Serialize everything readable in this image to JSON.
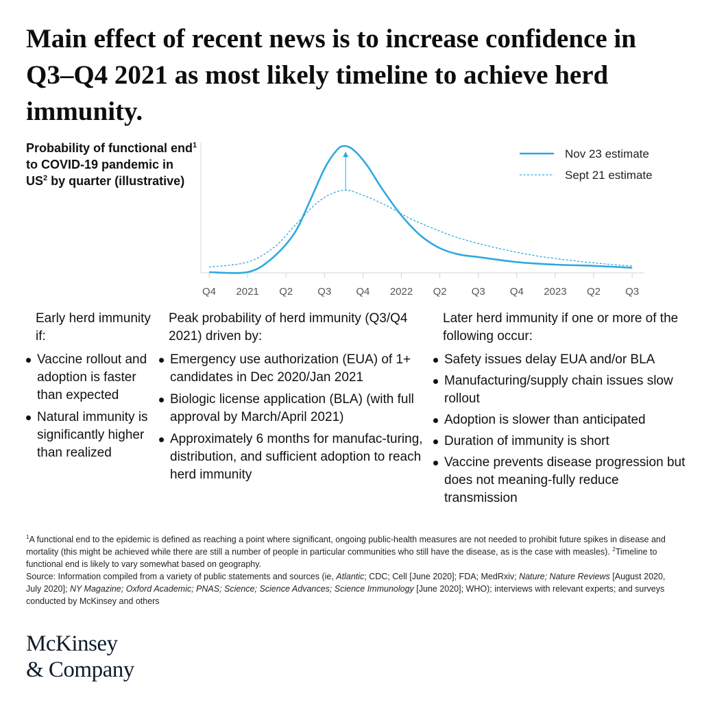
{
  "title": "Main effect of recent news is to increase confidence in Q3–Q4 2021 as most likely timeline to achieve herd immunity.",
  "chart_label": {
    "part1": "Probability of functional end",
    "sup1": "1",
    "part2": " to COVID-19 pandemic in US",
    "sup2": "2",
    "part3": " by quarter (illustrative)"
  },
  "chart_data": {
    "type": "line",
    "x_ticks": [
      "Q4",
      "2021",
      "Q2",
      "Q3",
      "Q4",
      "2022",
      "Q2",
      "Q3",
      "Q4",
      "2023",
      "Q2",
      "Q3"
    ],
    "series": [
      {
        "name": "Nov 23 estimate",
        "style": "solid",
        "color": "#2ea8e0",
        "points": [
          [
            0,
            0
          ],
          [
            1,
            0
          ],
          [
            1.6,
            0.1
          ],
          [
            2.2,
            0.3
          ],
          [
            2.6,
            0.55
          ],
          [
            3,
            0.82
          ],
          [
            3.3,
            0.96
          ],
          [
            3.5,
            1.0
          ],
          [
            3.75,
            0.97
          ],
          [
            4.1,
            0.85
          ],
          [
            4.5,
            0.66
          ],
          [
            5,
            0.45
          ],
          [
            5.5,
            0.29
          ],
          [
            6,
            0.19
          ],
          [
            6.5,
            0.14
          ],
          [
            7,
            0.12
          ],
          [
            8,
            0.08
          ],
          [
            9,
            0.06
          ],
          [
            10,
            0.05
          ],
          [
            11,
            0.035
          ]
        ]
      },
      {
        "name": "Sept 21 estimate",
        "style": "dashed",
        "color": "#2ea8e0",
        "points": [
          [
            0,
            0.04
          ],
          [
            1,
            0.08
          ],
          [
            1.7,
            0.2
          ],
          [
            2.2,
            0.36
          ],
          [
            2.7,
            0.52
          ],
          [
            3.1,
            0.61
          ],
          [
            3.55,
            0.65
          ],
          [
            4,
            0.61
          ],
          [
            4.6,
            0.53
          ],
          [
            5.2,
            0.43
          ],
          [
            5.8,
            0.35
          ],
          [
            6.5,
            0.27
          ],
          [
            7.5,
            0.19
          ],
          [
            8.5,
            0.13
          ],
          [
            9.5,
            0.09
          ],
          [
            10.5,
            0.06
          ],
          [
            11,
            0.05
          ]
        ]
      }
    ],
    "annotation": {
      "type": "arrow",
      "from_series": "Sept 21 estimate",
      "to_series": "Nov 23 estimate",
      "x": 3.55
    },
    "grid": false,
    "legend": "top-right",
    "xlabel": "",
    "ylabel": ""
  },
  "columns": {
    "early": {
      "heading": "Early herd immunity if:",
      "items": [
        "Vaccine rollout and adoption is faster than expected",
        "Natural immunity is significantly higher than realized"
      ]
    },
    "peak": {
      "heading": "Peak probability of herd immunity (Q3/Q4 2021) driven by:",
      "items": [
        "Emergency use authorization (EUA) of 1+ candidates in Dec 2020/Jan 2021",
        "Biologic license application (BLA) (with full approval by March/April 2021)",
        "Approximately 6 months for manufac-turing, distribution, and sufficient adoption to reach herd immunity"
      ]
    },
    "later": {
      "heading": "Later herd immunity if one or more of the following occur:",
      "items": [
        "Safety issues delay EUA and/or BLA",
        "Manufacturing/supply chain issues slow rollout",
        "Adoption is slower than anticipated",
        "Duration of immunity is short",
        "Vaccine prevents disease progression but does not meaning-fully reduce transmission"
      ]
    }
  },
  "footnotes": {
    "sup1": "1",
    "note1": "A functional end to the epidemic is defined as reaching a point where significant, ongoing public-health measures are not needed to prohibit future spikes in disease and mortality (this might be achieved while there are still a number of people in particular communities who still have the disease, as is the case with measles).",
    "sup2": "2",
    "note2": "Timeline to functional end is likely to vary somewhat based on geography.",
    "source_a": "Source: Information compiled from a variety of public statements and sources (ie, ",
    "source_atlantic": "Atlantic",
    "source_b": "; CDC; Cell [June 2020]; FDA; MedRxiv; ",
    "source_nature": "Nature; Nature Reviews",
    "source_c": " [August 2020, July 2020]; ",
    "source_journals": "NY Magazine; Oxford Academic; PNAS; Science; Science Advances; Science Immunology",
    "source_d": " [June 2020]; WHO); interviews with relevant experts; and surveys conducted by McKinsey and others"
  },
  "logo": {
    "line1": "McKinsey",
    "line2": "& Company"
  }
}
